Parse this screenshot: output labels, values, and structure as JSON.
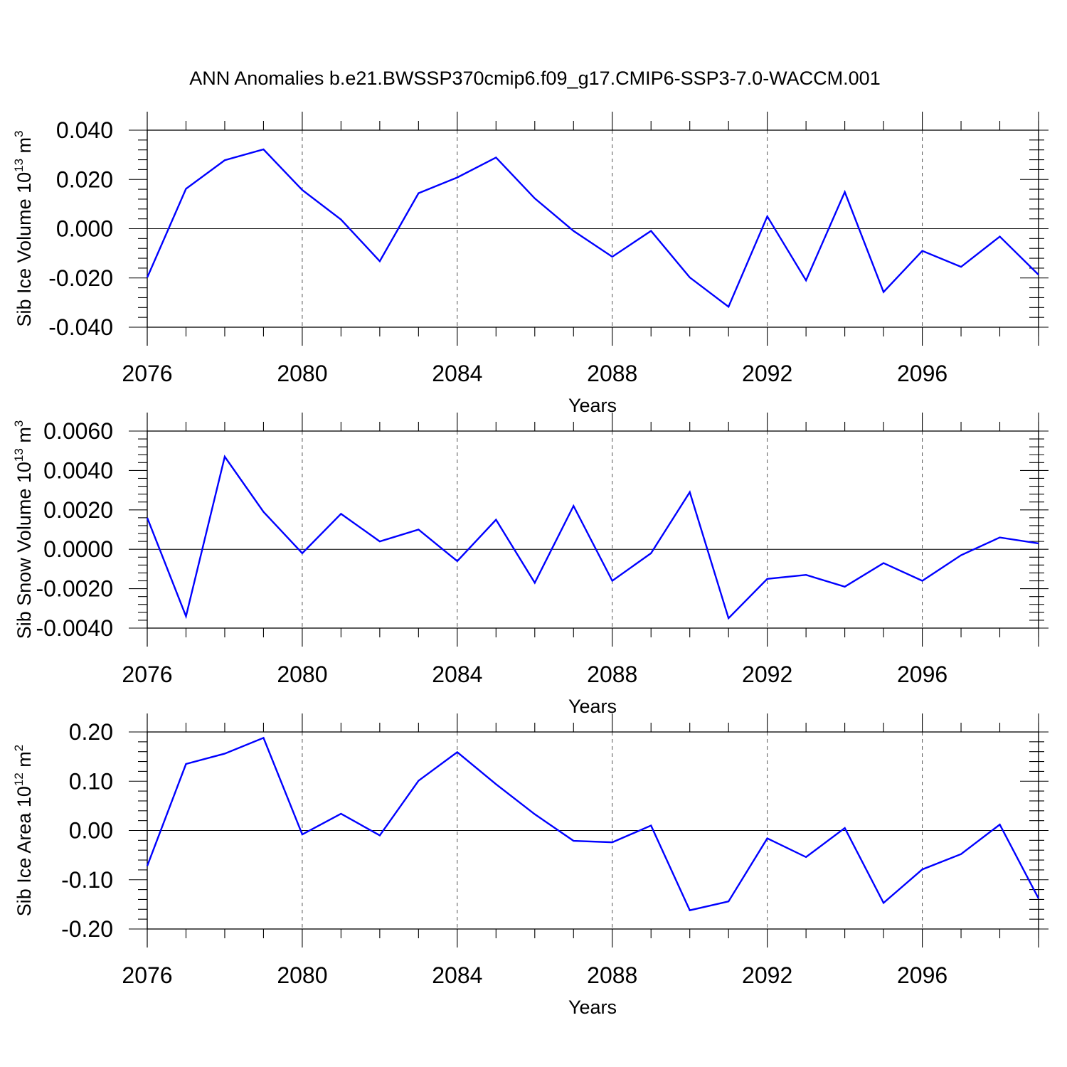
{
  "figure": {
    "title": "ANN Anomalies b.e21.BWSSP370cmip6.f09_g17.CMIP6-SSP3-7.0-WACCM.001"
  },
  "colors": {
    "line": "#0000ff",
    "axis": "#000000",
    "grid": "#555555"
  },
  "chart_data": [
    {
      "type": "line",
      "xlabel": "Years",
      "ylabel": {
        "text": "Sib Ice Volume 10",
        "exp": "13",
        "unit": " m",
        "unit_exp": "3"
      },
      "xlim": [
        2076,
        2099
      ],
      "ylim": [
        -0.04,
        0.04
      ],
      "xticks": [
        2076,
        2080,
        2084,
        2088,
        2092,
        2096
      ],
      "xtick_labels": [
        "2076",
        "2080",
        "2084",
        "2088",
        "2092",
        "2096"
      ],
      "yticks": [
        -0.04,
        -0.02,
        0.0,
        0.02,
        0.04
      ],
      "ytick_labels": [
        "-0.040",
        "-0.020",
        "0.000",
        "0.020",
        "0.040"
      ],
      "grid": "x dashed",
      "x": [
        2076,
        2077,
        2078,
        2079,
        2080,
        2081,
        2082,
        2083,
        2084,
        2085,
        2086,
        2087,
        2088,
        2089,
        2090,
        2091,
        2092,
        2093,
        2094,
        2095,
        2096,
        2097,
        2098,
        2099
      ],
      "values": [
        -0.0198,
        0.0162,
        0.0278,
        0.0322,
        0.0157,
        0.0037,
        -0.0132,
        0.0144,
        0.0208,
        0.0289,
        0.0123,
        -0.0009,
        -0.0114,
        -0.0009,
        -0.0198,
        -0.0317,
        0.005,
        -0.021,
        0.0149,
        -0.0257,
        -0.009,
        -0.0155,
        -0.0032,
        -0.0187
      ]
    },
    {
      "type": "line",
      "xlabel": "Years",
      "ylabel": {
        "text": "Sib Snow Volume 10",
        "exp": "13",
        "unit": " m",
        "unit_exp": "3"
      },
      "xlim": [
        2076,
        2099
      ],
      "ylim": [
        -0.004,
        0.006
      ],
      "xticks": [
        2076,
        2080,
        2084,
        2088,
        2092,
        2096
      ],
      "xtick_labels": [
        "2076",
        "2080",
        "2084",
        "2088",
        "2092",
        "2096"
      ],
      "yticks": [
        -0.004,
        -0.002,
        0.0,
        0.002,
        0.004,
        0.006
      ],
      "ytick_labels": [
        "-0.0040",
        "-0.0020",
        "0.0000",
        "0.0020",
        "0.0040",
        "0.0060"
      ],
      "grid": "x dashed",
      "x": [
        2076,
        2077,
        2078,
        2079,
        2080,
        2081,
        2082,
        2083,
        2084,
        2085,
        2086,
        2087,
        2088,
        2089,
        2090,
        2091,
        2092,
        2093,
        2094,
        2095,
        2096,
        2097,
        2098,
        2099
      ],
      "values": [
        0.0016,
        -0.0034,
        0.0047,
        0.0019,
        -0.0002,
        0.0018,
        0.0004,
        0.001,
        -0.0006,
        0.0015,
        -0.0017,
        0.0022,
        -0.0016,
        -0.0002,
        0.0029,
        -0.0035,
        -0.0015,
        -0.0013,
        -0.0019,
        -0.0007,
        -0.0016,
        -0.0003,
        0.0006,
        0.0003
      ]
    },
    {
      "type": "line",
      "xlabel": "Years",
      "ylabel": {
        "text": "Sib Ice Area 10",
        "exp": "12",
        "unit": " m",
        "unit_exp": "2"
      },
      "xlim": [
        2076,
        2099
      ],
      "ylim": [
        -0.2,
        0.2
      ],
      "xticks": [
        2076,
        2080,
        2084,
        2088,
        2092,
        2096
      ],
      "xtick_labels": [
        "2076",
        "2080",
        "2084",
        "2088",
        "2092",
        "2096"
      ],
      "yticks": [
        -0.2,
        -0.1,
        0.0,
        0.1,
        0.2
      ],
      "ytick_labels": [
        "-0.20",
        "-0.10",
        "0.00",
        "0.10",
        "0.20"
      ],
      "grid": "x dashed",
      "x": [
        2076,
        2077,
        2078,
        2079,
        2080,
        2081,
        2082,
        2083,
        2084,
        2085,
        2086,
        2087,
        2088,
        2089,
        2090,
        2091,
        2092,
        2093,
        2094,
        2095,
        2096,
        2097,
        2098,
        2099
      ],
      "values": [
        -0.072,
        0.135,
        0.156,
        0.188,
        -0.008,
        0.034,
        -0.01,
        0.101,
        0.159,
        0.094,
        0.033,
        -0.021,
        -0.024,
        0.01,
        -0.162,
        -0.144,
        -0.016,
        -0.054,
        0.005,
        -0.147,
        -0.079,
        -0.048,
        0.012,
        -0.138
      ]
    }
  ]
}
